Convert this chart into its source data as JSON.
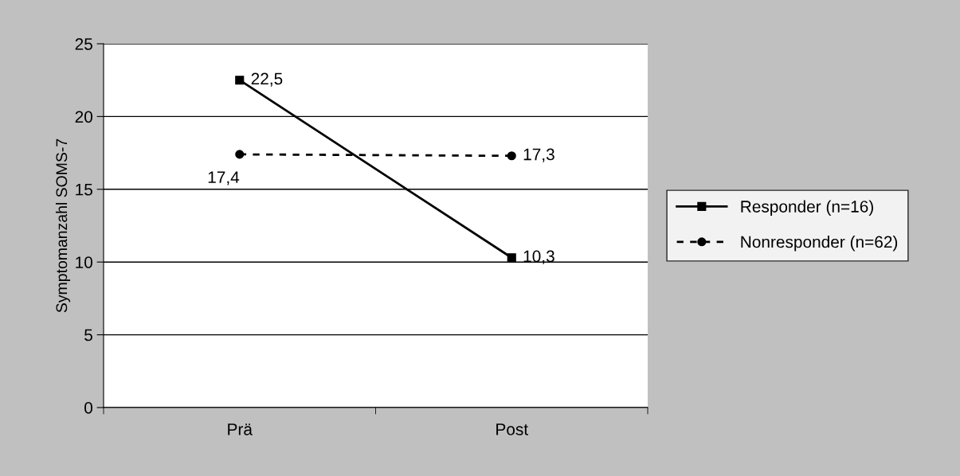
{
  "chart_data": {
    "type": "line",
    "ylabel": "Symptomanzahl SOMS-7",
    "categories": [
      "Prä",
      "Post"
    ],
    "series": [
      {
        "name": "Responder (n=16)",
        "color": "#000000",
        "values": [
          22.5,
          10.3
        ],
        "marker": "square",
        "line_style": "solid",
        "value_labels": [
          "22,5",
          "10,3"
        ]
      },
      {
        "name": "Nonresponder (n=62)",
        "color": "#000000",
        "values": [
          17.4,
          17.3
        ],
        "marker": "circle",
        "line_style": "dashed",
        "value_labels": [
          "17,4",
          "17,3"
        ]
      }
    ],
    "ylim": [
      0,
      25
    ],
    "yticks": [
      0,
      5,
      10,
      15,
      20,
      25
    ],
    "grid": "y",
    "legend": "right"
  }
}
